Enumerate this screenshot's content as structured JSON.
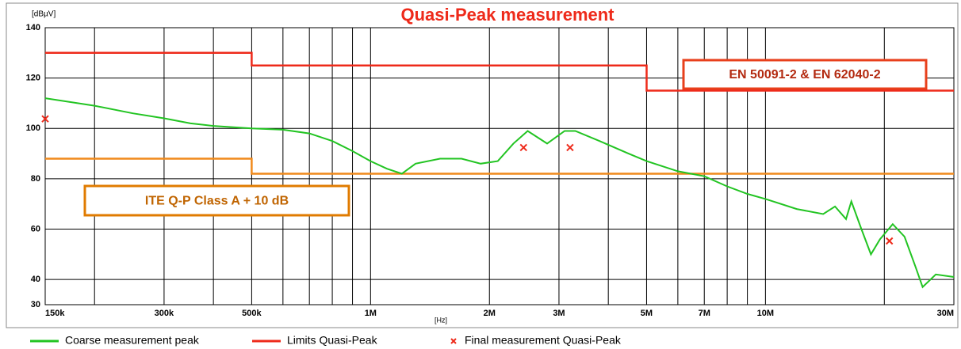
{
  "chart_data": {
    "type": "line",
    "title": "Quasi-Peak  measurement",
    "y_label": "[dBµV]",
    "x_label": "[Hz]",
    "xscale": "log",
    "grid": true,
    "xlim": [
      150000,
      30000000
    ],
    "ylim": [
      30,
      140
    ],
    "yticks": [
      30,
      40,
      60,
      80,
      100,
      120,
      140
    ],
    "xticks": [
      {
        "value": 150000,
        "label": "150k"
      },
      {
        "value": 300000,
        "label": "300k"
      },
      {
        "value": 500000,
        "label": "500k"
      },
      {
        "value": 1000000,
        "label": "1M"
      },
      {
        "value": 2000000,
        "label": "2M"
      },
      {
        "value": 3000000,
        "label": "3M"
      },
      {
        "value": 5000000,
        "label": "5M"
      },
      {
        "value": 7000000,
        "label": "7M"
      },
      {
        "value": 10000000,
        "label": "10M"
      },
      {
        "value": 30000000,
        "label": "30M"
      }
    ],
    "xgrid": [
      200000,
      400000,
      600000,
      700000,
      800000,
      900000,
      4000000,
      6000000,
      8000000,
      9000000,
      20000000
    ],
    "annotations": [
      {
        "text": "EN 50091-2 & EN 62040-2",
        "color": "#e8401c"
      },
      {
        "text": "ITE  Q-P Class A + 10 dB",
        "color": "#e07b00"
      }
    ],
    "series": [
      {
        "name": "Coarse measurement peak",
        "color": "#22c422",
        "x": [
          150000,
          200000,
          250000,
          300000,
          350000,
          400000,
          500000,
          600000,
          700000,
          800000,
          900000,
          1000000,
          1100000,
          1200000,
          1300000,
          1500000,
          1700000,
          1900000,
          2100000,
          2300000,
          2500000,
          2800000,
          3100000,
          3300000,
          3800000,
          4500000,
          5000000,
          6000000,
          7000000,
          8000000,
          9000000,
          10000000,
          12000000,
          14000000,
          15000000,
          16000000,
          16500000,
          17500000,
          18500000,
          19500000,
          21000000,
          22500000,
          24000000,
          25000000,
          27000000,
          30000000
        ],
        "values": [
          112,
          109,
          106,
          104,
          102,
          101,
          100,
          99.5,
          98,
          95,
          91,
          87,
          84,
          82,
          86,
          88,
          88,
          86,
          87,
          94,
          99,
          94,
          99,
          99,
          95,
          90,
          87,
          83,
          81,
          77,
          74,
          72,
          68,
          66,
          69,
          64,
          71,
          60,
          50,
          56,
          62,
          57,
          45,
          37,
          42,
          41
        ]
      },
      {
        "name": "Limits Quasi-Peak",
        "color": "#ee2a1a",
        "x": [
          150000,
          500000,
          500000,
          5000000,
          5000000,
          30000000
        ],
        "values": [
          130,
          130,
          125,
          125,
          115,
          115
        ]
      },
      {
        "color": "#f08a1c",
        "x": [
          150000,
          500000,
          500000,
          30000000
        ],
        "values": [
          88,
          88,
          82,
          82
        ]
      },
      {
        "name": "Final measurement Quasi-Peak",
        "color": "#ee2a1a",
        "marker": "x",
        "x": [
          150000,
          2440000,
          3200000,
          20600000
        ],
        "values": [
          103.8,
          92.4,
          92.4,
          55.3
        ]
      }
    ]
  }
}
